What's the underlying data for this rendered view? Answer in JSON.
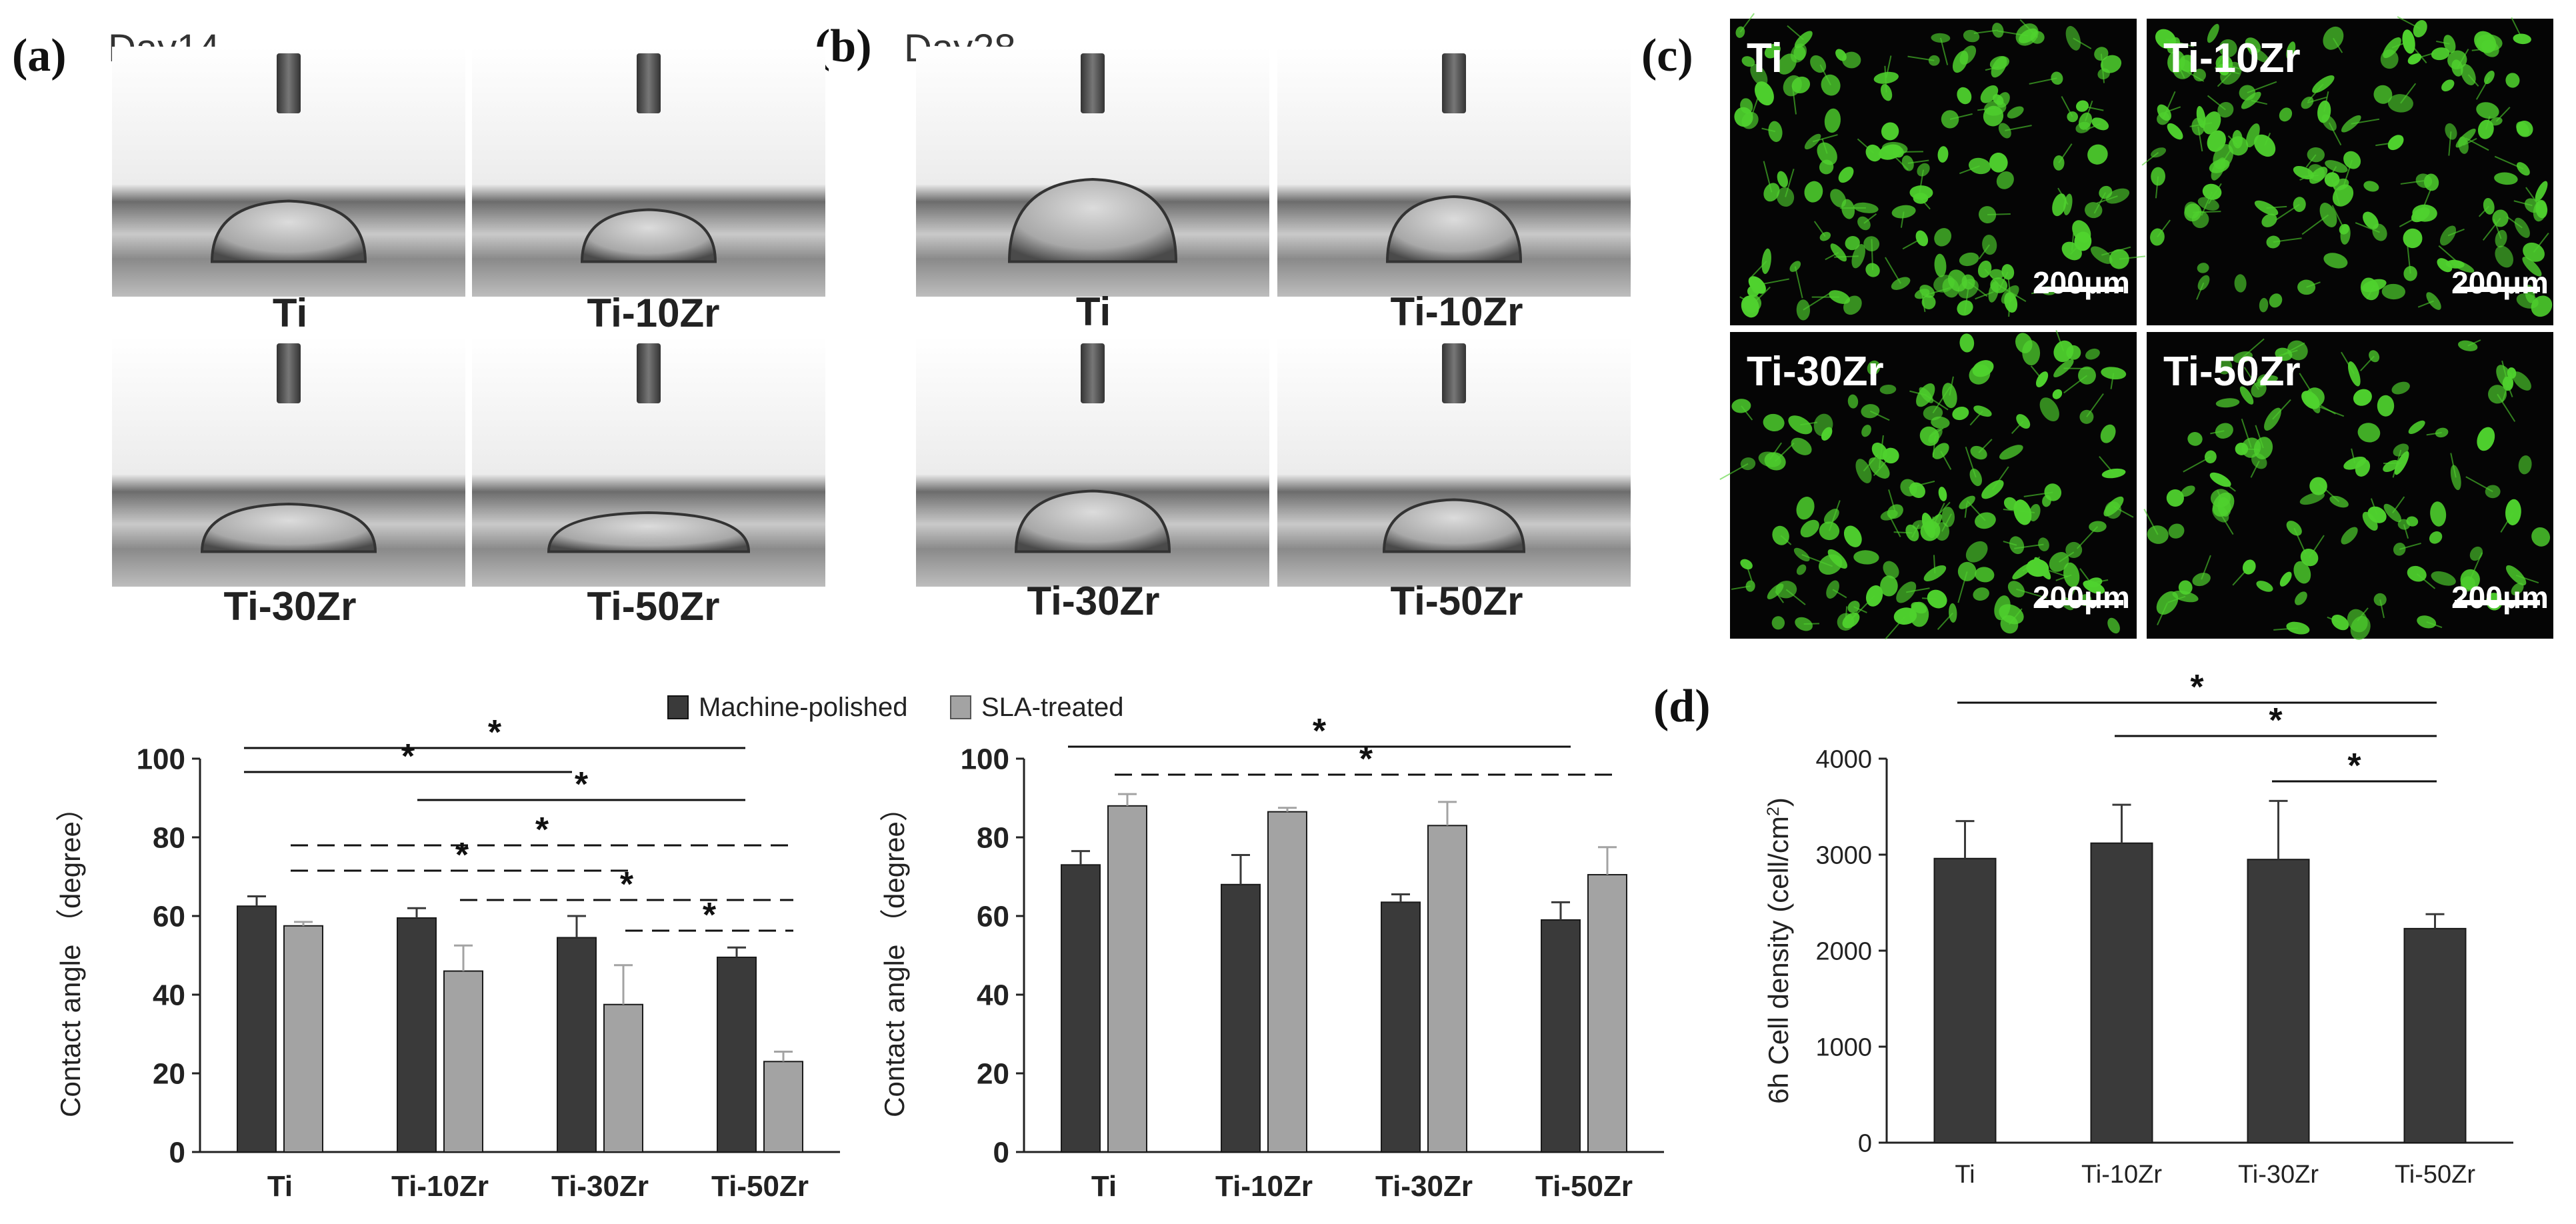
{
  "figure": {
    "panel_labels": [
      "(a)",
      "(b)",
      "(c)",
      "(d)"
    ],
    "day_labels": {
      "a": "Day14",
      "b": "Day28"
    },
    "droplet_photos": {
      "a": {
        "labels": [
          "Ti",
          "Ti-10Zr",
          "Ti-30Zr",
          "Ti-50Zr"
        ]
      },
      "b": {
        "labels": [
          "Ti",
          "Ti-10Zr",
          "Ti-30Zr",
          "Ti-50Zr"
        ]
      }
    },
    "fluorescence": {
      "labels": [
        "Ti",
        "Ti-10Zr",
        "Ti-30Zr",
        "Ti-50Zr"
      ],
      "scale_bar": "200μm",
      "relative_cell_density": [
        1.0,
        1.0,
        0.95,
        0.7
      ],
      "cell_color": "#4fd22e"
    },
    "legend": [
      "Machine-polished",
      "SLA-treated"
    ],
    "colors": {
      "machine_polished": "#3a3a3a",
      "sla_treated": "#a3a3a3"
    }
  },
  "chart_data": [
    {
      "panel": "a",
      "type": "bar",
      "categories": [
        "Ti",
        "Ti-10Zr",
        "Ti-30Zr",
        "Ti-50Zr"
      ],
      "series": [
        {
          "name": "Machine-polished",
          "values": [
            62.5,
            59.5,
            54.5,
            49.5
          ],
          "errors": [
            2.5,
            2.5,
            5.5,
            2.5
          ]
        },
        {
          "name": "SLA-treated",
          "values": [
            57.5,
            46.0,
            37.5,
            23.0
          ],
          "errors": [
            1.0,
            6.5,
            10.0,
            2.5
          ]
        }
      ],
      "ylabel": "Contact angle （degree）",
      "ylim": [
        0,
        100
      ],
      "yticks": [
        0,
        20,
        40,
        60,
        80,
        100
      ],
      "significance": [
        {
          "from": 0,
          "to": 3,
          "style": "solid",
          "label": "*"
        },
        {
          "from": 0,
          "to": 2,
          "style": "solid",
          "label": "*"
        },
        {
          "from": 1,
          "to": 3,
          "style": "solid",
          "label": "*"
        },
        {
          "from": 0,
          "to": 3,
          "style": "dashed",
          "label": "*"
        },
        {
          "from": 0,
          "to": 2,
          "style": "dashed",
          "label": "*"
        },
        {
          "from": 1,
          "to": 3,
          "style": "dashed",
          "label": "*"
        },
        {
          "from": 2,
          "to": 3,
          "style": "dashed",
          "label": "*"
        }
      ]
    },
    {
      "panel": "b",
      "type": "bar",
      "categories": [
        "Ti",
        "Ti-10Zr",
        "Ti-30Zr",
        "Ti-50Zr"
      ],
      "series": [
        {
          "name": "Machine-polished",
          "values": [
            73.0,
            68.0,
            63.5,
            59.0
          ],
          "errors": [
            3.5,
            7.5,
            2.0,
            4.5
          ]
        },
        {
          "name": "SLA-treated",
          "values": [
            88.0,
            86.5,
            83.0,
            70.5
          ],
          "errors": [
            3.0,
            1.0,
            6.0,
            7.0
          ]
        }
      ],
      "ylabel": "Contact angle （degree）",
      "ylim": [
        0,
        100
      ],
      "yticks": [
        0,
        20,
        40,
        60,
        80,
        100
      ],
      "significance": [
        {
          "from": 0,
          "to": 3,
          "style": "solid",
          "label": "*"
        },
        {
          "from": 0,
          "to": 3,
          "style": "dashed",
          "label": "*"
        }
      ]
    },
    {
      "panel": "d",
      "type": "bar",
      "categories": [
        "Ti",
        "Ti-10Zr",
        "Ti-30Zr",
        "Ti-50Zr"
      ],
      "series": [
        {
          "values": [
            2960,
            3120,
            2950,
            2230
          ],
          "errors": [
            390,
            400,
            610,
            150
          ]
        }
      ],
      "ylabel": "6h Cell density (cell/cm",
      "ylabel_sup": "2",
      "ylabel_end": ")",
      "ylim": [
        0,
        4000
      ],
      "yticks": [
        0,
        1000,
        2000,
        3000,
        4000
      ],
      "significance": [
        {
          "from": 0,
          "to": 3,
          "style": "solid",
          "label": "*"
        },
        {
          "from": 1,
          "to": 3,
          "style": "solid",
          "label": "*"
        },
        {
          "from": 2,
          "to": 3,
          "style": "solid",
          "label": "*"
        }
      ]
    }
  ]
}
